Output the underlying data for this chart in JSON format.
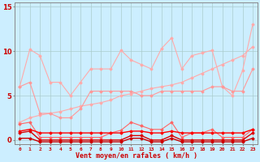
{
  "x": [
    0,
    1,
    2,
    3,
    4,
    5,
    6,
    7,
    8,
    9,
    10,
    11,
    12,
    13,
    14,
    15,
    16,
    17,
    18,
    19,
    20,
    21,
    22,
    23
  ],
  "series": [
    {
      "name": "rafales_max",
      "color": "#ffaaaa",
      "linewidth": 0.8,
      "marker": "D",
      "markersize": 1.5,
      "values": [
        6.0,
        10.2,
        9.5,
        6.5,
        6.5,
        5.0,
        6.5,
        8.0,
        8.0,
        8.0,
        10.1,
        9.0,
        8.5,
        8.0,
        10.3,
        11.5,
        8.0,
        9.5,
        9.8,
        10.1,
        6.0,
        5.0,
        7.8,
        13.0
      ]
    },
    {
      "name": "vent_max_trend",
      "color": "#ffaaaa",
      "linewidth": 0.8,
      "marker": "D",
      "markersize": 1.5,
      "values": [
        2.0,
        2.5,
        2.8,
        3.0,
        3.2,
        3.5,
        3.8,
        4.0,
        4.2,
        4.5,
        5.0,
        5.2,
        5.5,
        5.8,
        6.0,
        6.2,
        6.5,
        7.0,
        7.5,
        8.0,
        8.5,
        9.0,
        9.5,
        10.5
      ]
    },
    {
      "name": "vent_max",
      "color": "#ff9999",
      "linewidth": 0.8,
      "marker": "D",
      "markersize": 1.5,
      "values": [
        6.0,
        6.5,
        3.0,
        3.0,
        2.5,
        2.5,
        3.5,
        5.5,
        5.5,
        5.5,
        5.5,
        5.5,
        5.0,
        5.0,
        5.5,
        5.5,
        5.5,
        5.5,
        5.5,
        6.0,
        6.0,
        5.5,
        5.5,
        8.0
      ]
    },
    {
      "name": "rafales_med",
      "color": "#ff6666",
      "linewidth": 0.8,
      "marker": "D",
      "markersize": 1.5,
      "values": [
        1.8,
        2.0,
        0.3,
        0.3,
        0.3,
        0.3,
        0.3,
        0.3,
        0.3,
        0.8,
        1.1,
        2.0,
        1.6,
        1.2,
        1.2,
        2.0,
        0.3,
        0.8,
        0.8,
        1.2,
        0.3,
        0.3,
        0.3,
        1.2
      ]
    },
    {
      "name": "vent_med",
      "color": "#ff0000",
      "linewidth": 1.0,
      "marker": "D",
      "markersize": 1.5,
      "values": [
        1.0,
        1.2,
        0.8,
        0.8,
        0.8,
        0.8,
        0.8,
        0.8,
        0.8,
        0.8,
        0.8,
        1.0,
        1.0,
        0.8,
        0.8,
        1.0,
        0.8,
        0.8,
        0.8,
        0.8,
        0.8,
        0.8,
        0.8,
        1.2
      ]
    },
    {
      "name": "vent_min",
      "color": "#dd0000",
      "linewidth": 1.0,
      "marker": "D",
      "markersize": 1.5,
      "values": [
        0.8,
        1.0,
        0.0,
        0.0,
        0.0,
        0.0,
        0.0,
        0.0,
        0.0,
        0.0,
        0.0,
        0.5,
        0.5,
        0.0,
        0.0,
        0.5,
        0.0,
        0.0,
        0.0,
        0.0,
        0.0,
        0.0,
        0.0,
        0.8
      ]
    },
    {
      "name": "rafales_min",
      "color": "#cc0000",
      "linewidth": 1.0,
      "marker": "D",
      "markersize": 1.5,
      "values": [
        0.2,
        0.2,
        -0.2,
        -0.2,
        -0.2,
        -0.2,
        -0.2,
        -0.2,
        -0.2,
        -0.2,
        -0.2,
        0.2,
        0.2,
        -0.2,
        -0.2,
        0.2,
        -0.2,
        -0.2,
        -0.2,
        -0.2,
        -0.2,
        -0.2,
        -0.2,
        0.2
      ]
    }
  ],
  "xlim": [
    -0.5,
    23.5
  ],
  "ylim": [
    -0.5,
    15.5
  ],
  "yticks": [
    0,
    5,
    10,
    15
  ],
  "xticks": [
    0,
    1,
    2,
    3,
    4,
    5,
    6,
    7,
    8,
    9,
    10,
    11,
    12,
    13,
    14,
    15,
    16,
    17,
    18,
    19,
    20,
    21,
    22,
    23
  ],
  "xlabel": "Vent moyen/en rafales ( km/h )",
  "background_color": "#cceeff",
  "grid_color": "#aacccc",
  "tick_color": "#cc0000",
  "label_color": "#cc0000",
  "spine_color": "#888888"
}
